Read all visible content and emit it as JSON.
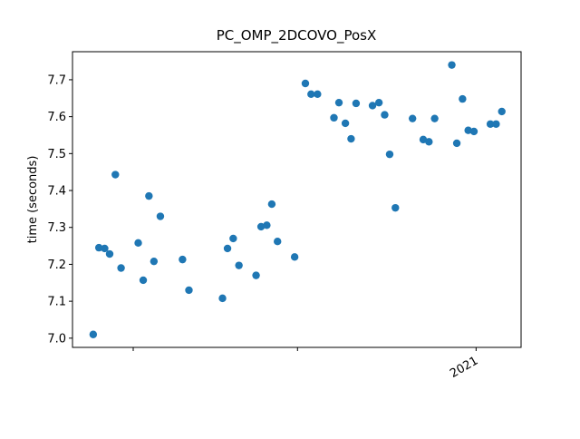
{
  "chart_data": {
    "type": "scatter",
    "title": "PC_OMP_2DCOVO_PosX",
    "y_label": "time (seconds)",
    "color": "#1f77b4",
    "x": [
      2020.464,
      2020.472,
      2020.48,
      2020.487,
      2020.495,
      2020.503,
      2020.527,
      2020.534,
      2020.542,
      2020.549,
      2020.558,
      2020.589,
      2020.598,
      2020.645,
      2020.652,
      2020.66,
      2020.668,
      2020.692,
      2020.699,
      2020.707,
      2020.714,
      2020.722,
      2020.746,
      2020.761,
      2020.769,
      2020.778,
      2020.801,
      2020.808,
      2020.817,
      2020.825,
      2020.832,
      2020.855,
      2020.864,
      2020.872,
      2020.879,
      2020.887,
      2020.911,
      2020.926,
      2020.934,
      2020.942,
      2020.966,
      2020.973,
      2020.981,
      2020.989,
      2020.997,
      2021.02,
      2021.028,
      2021.036
    ],
    "values": [
      7.01,
      7.245,
      7.243,
      7.228,
      7.443,
      7.19,
      7.258,
      7.157,
      7.385,
      7.208,
      7.33,
      7.213,
      7.13,
      7.108,
      7.243,
      7.27,
      7.197,
      7.17,
      7.302,
      7.306,
      7.363,
      7.262,
      7.22,
      7.69,
      7.661,
      7.661,
      7.597,
      7.638,
      7.582,
      7.54,
      7.636,
      7.63,
      7.638,
      7.605,
      7.498,
      7.353,
      7.595,
      7.538,
      7.532,
      7.595,
      7.74,
      7.528,
      7.648,
      7.563,
      7.56,
      7.58,
      7.58,
      7.614
    ],
    "xlim": [
      2020.435,
      2021.063
    ],
    "ylim": [
      6.975,
      7.776
    ],
    "xticks": [
      {
        "value": 2020.52,
        "label": null
      },
      {
        "value": 2020.75,
        "label": null
      },
      2021
    ],
    "yticks": [
      {
        "value": 7.0,
        "label": "7.0"
      },
      7.1,
      7.2,
      7.3,
      7.4,
      7.5,
      7.6,
      7.7
    ]
  }
}
